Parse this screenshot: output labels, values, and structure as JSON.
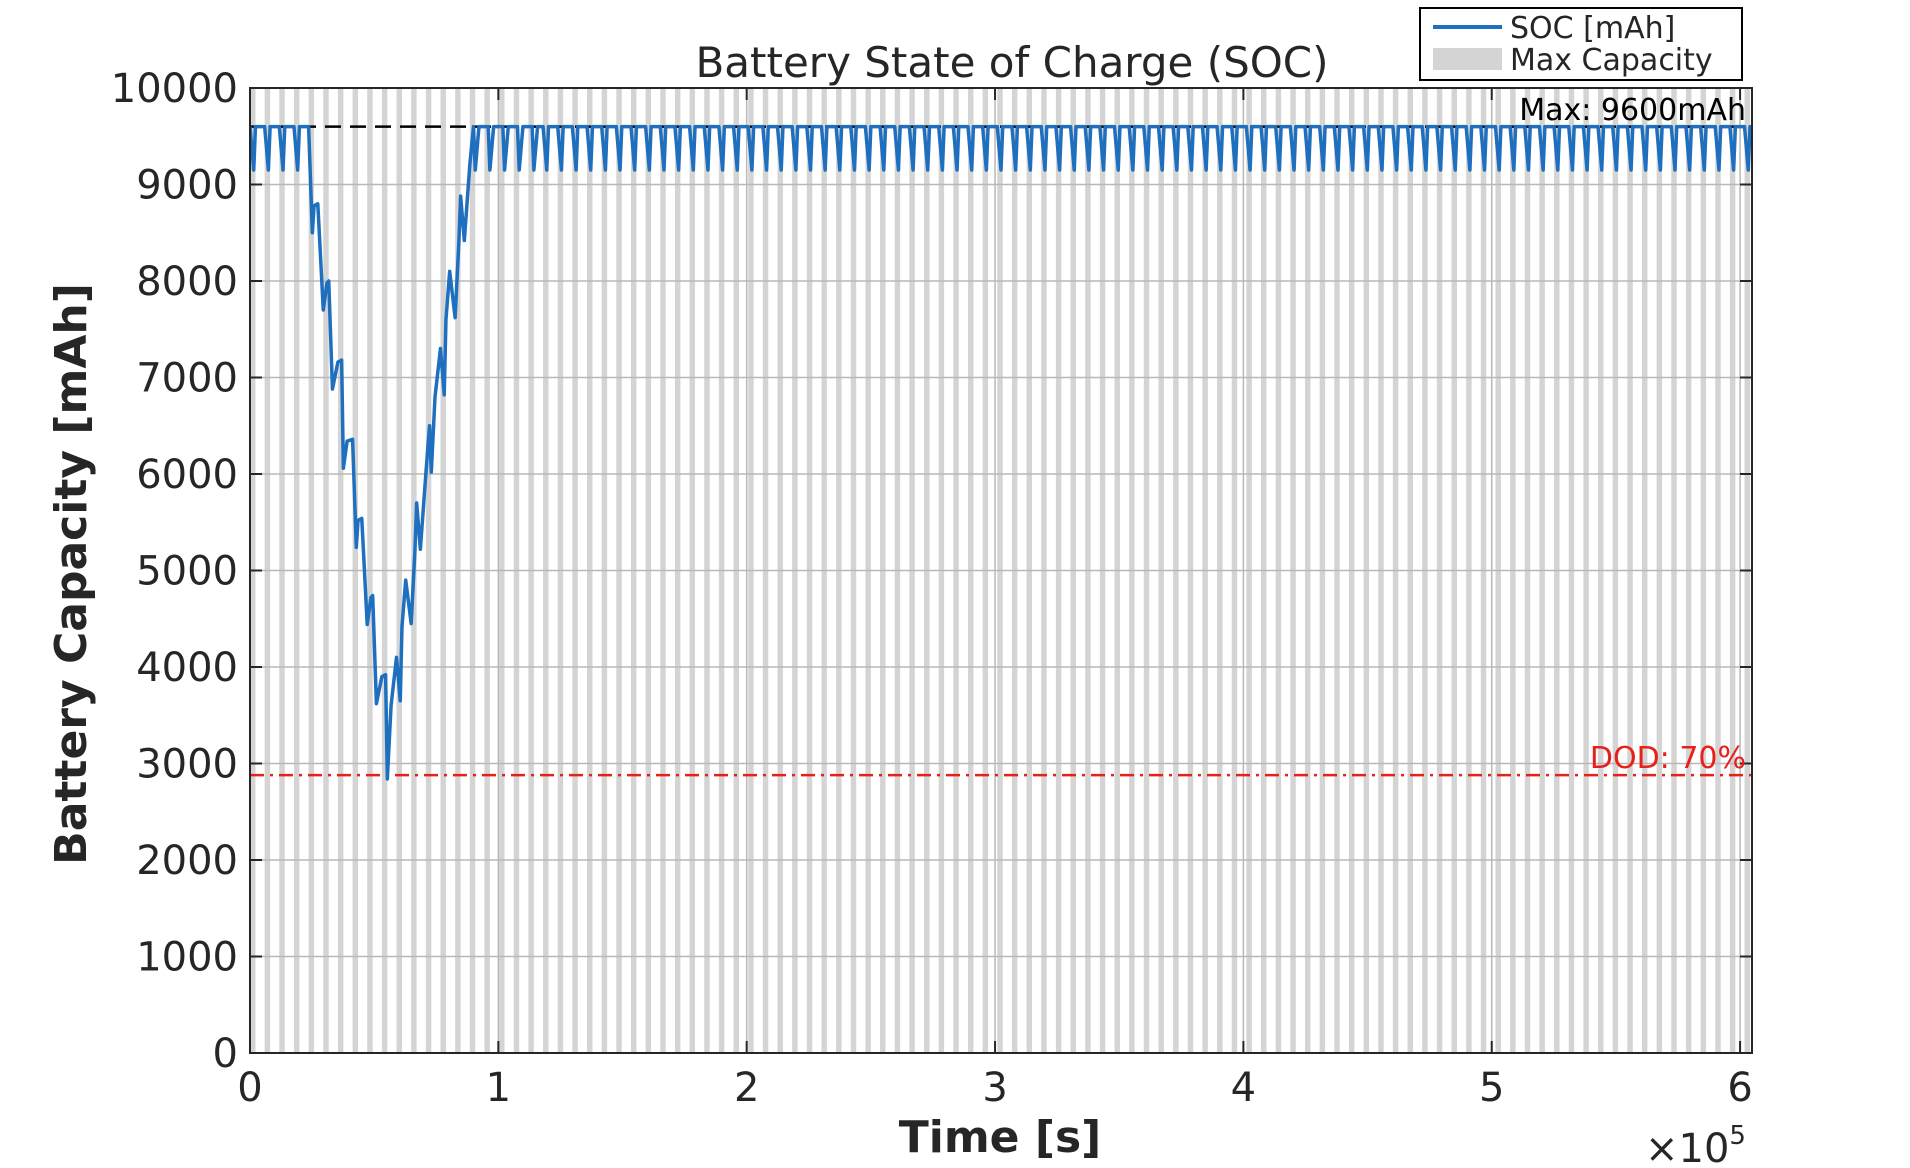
{
  "chart_data": {
    "type": "line",
    "title": "Battery State of Charge (SOC)",
    "xlabel": "Time [s]",
    "ylabel": "Battery Capacity [mAh]",
    "x_exponent_label": "×10",
    "x_exponent_power": "5",
    "xlim": [
      0,
      604800
    ],
    "ylim": [
      0,
      10000
    ],
    "x_ticks": [
      0,
      100000,
      200000,
      300000,
      400000,
      500000,
      600000
    ],
    "x_tick_labels": [
      "0",
      "1",
      "2",
      "3",
      "4",
      "5",
      "6"
    ],
    "y_ticks": [
      0,
      1000,
      2000,
      3000,
      4000,
      5000,
      6000,
      7000,
      8000,
      9000,
      10000
    ],
    "y_tick_labels": [
      "0",
      "1000",
      "2000",
      "3000",
      "4000",
      "5000",
      "6000",
      "7000",
      "8000",
      "9000",
      "10000"
    ],
    "grid": true,
    "legend_position": "top-right",
    "legend": [
      {
        "label": "SOC [mAh]",
        "kind": "line",
        "color": "#1f6fbf"
      },
      {
        "label": "Max Capacity",
        "kind": "patch",
        "color": "#d4d4d4"
      }
    ],
    "shading": {
      "period": 5900,
      "shaded_duration": 2200,
      "color": "#d4d4d4"
    },
    "reference_lines": [
      {
        "label": "Max: 9600mAh",
        "y": 9600,
        "style": "dashed",
        "color": "#000000"
      },
      {
        "label": "DOD: 70%",
        "y": 2880,
        "style": "dashdot",
        "color": "#e8201a"
      }
    ],
    "series": [
      {
        "name": "SOC [mAh]",
        "color": "#1f6fbf",
        "x": [
          0,
          1500,
          2200,
          3700,
          5900,
          7400,
          8100,
          9600,
          11800,
          13300,
          14000,
          15500,
          17700,
          19200,
          19900,
          21400,
          23600,
          23600,
          25100,
          25800,
          27300,
          29500,
          31000,
          31700,
          33200,
          35400,
          36900,
          37600,
          39100,
          41300,
          42800,
          43500,
          45000,
          47200,
          48700,
          49400,
          50900,
          53100,
          54600,
          55300,
          56800,
          59000,
          60500,
          61200,
          62700,
          64900,
          66400,
          67100,
          68600,
          70800,
          72300,
          73000,
          74500,
          76700,
          78200,
          78900,
          80400,
          82600,
          84100,
          84800,
          86300,
          88500,
          90000,
          90700,
          92200,
          94400,
          95900,
          96600,
          98100,
          100300,
          101800,
          102500,
          104000,
          106200,
          107700,
          108400,
          109900,
          112100,
          113600,
          114300,
          115800,
          118000
        ],
        "y": [
          9600,
          9150,
          9600,
          9600,
          9600,
          9150,
          9600,
          9600,
          9600,
          9150,
          9600,
          9600,
          9600,
          9150,
          9600,
          9600,
          9600,
          9600,
          8500,
          8780,
          8800,
          7700,
          7980,
          8000,
          6880,
          7160,
          7180,
          6060,
          6340,
          6360,
          5240,
          5520,
          5540,
          4440,
          4720,
          4740,
          3620,
          3900,
          3920,
          2840,
          3600,
          4100,
          3650,
          4420,
          4900,
          4450,
          5200,
          5700,
          5220,
          6000,
          6500,
          6020,
          6800,
          7300,
          6820,
          7600,
          8100,
          7620,
          8400,
          8880,
          8420,
          9200,
          9600,
          9150,
          9600,
          9600,
          9600,
          9150,
          9600,
          9600,
          9600,
          9150,
          9600,
          9600,
          9600,
          9150,
          9600,
          9600,
          9600,
          9150,
          9600,
          9600
        ],
        "periodic_after_x": 118000,
        "periodic_pattern": {
          "period": 5900,
          "high": 9600,
          "low": 9150,
          "discharge_duration": 1500,
          "charge_duration": 700
        }
      }
    ]
  }
}
